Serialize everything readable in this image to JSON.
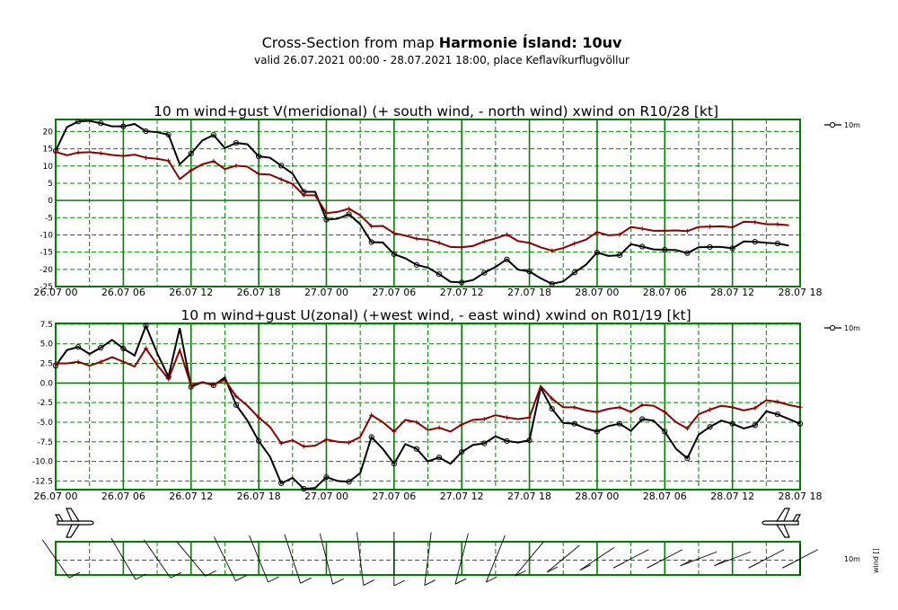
{
  "title": {
    "prefix": "Cross-Section from map ",
    "map_name": "Harmonie Ísland: 10uv",
    "subtitle": "valid 26.07.2021 00:00 - 28.07.2021 18:00, place Keflavíkurflugvöllur"
  },
  "colors": {
    "wind": "#000000",
    "gust": "#8b0000",
    "grid": "#008000"
  },
  "chart_data": [
    {
      "type": "line",
      "title": "10 m wind+gust V(meridional) (+ south wind, - north wind) xwind on R10/28 [kt]",
      "x_tick_labels": [
        "26.07 00",
        "26.07 06",
        "26.07 12",
        "26.07 18",
        "27.07 00",
        "27.07 06",
        "27.07 12",
        "27.07 18",
        "28.07 00",
        "28.07 06",
        "28.07 12",
        "28.07 18"
      ],
      "y_ticks": [
        20,
        15,
        10,
        5,
        0,
        -5,
        -10,
        -15,
        -20,
        -25
      ],
      "ylim": [
        -25,
        23.5
      ],
      "xlim": [
        0,
        66
      ],
      "legend": "10m",
      "series": [
        {
          "name": "wind",
          "marker": "circle",
          "values": [
            14.4,
            21.3,
            22.9,
            23.1,
            22.4,
            21.5,
            21.5,
            22.2,
            20.1,
            19.8,
            19.1,
            10.5,
            13.6,
            17.4,
            19.0,
            15.2,
            16.7,
            16.3,
            12.8,
            12.4,
            10.1,
            7.8,
            2.5,
            2.5,
            -5.6,
            -5.3,
            -4.0,
            -6.9,
            -12.1,
            -12.2,
            -15.6,
            -16.8,
            -18.7,
            -19.5,
            -21.4,
            -23.6,
            -23.8,
            -23.1,
            -21.0,
            -19.3,
            -17.1,
            -20.1,
            -20.6,
            -22.6,
            -24.2,
            -23.5,
            -20.9,
            -18.7,
            -15.1,
            -16.1,
            -15.9,
            -12.7,
            -13.4,
            -14.2,
            -14.3,
            -14.4,
            -15.3,
            -13.6,
            -13.5,
            -13.5,
            -13.9,
            -11.9,
            -12.0,
            -12.3,
            -12.5,
            -13.1
          ]
        },
        {
          "name": "gust",
          "marker": "plus",
          "values": [
            14.1,
            13.1,
            13.9,
            14.0,
            13.7,
            13.2,
            12.9,
            13.3,
            12.4,
            12.1,
            11.5,
            6.2,
            8.7,
            10.5,
            11.4,
            9.1,
            10.1,
            9.8,
            7.7,
            7.5,
            6.1,
            4.8,
            1.5,
            1.5,
            -3.7,
            -3.3,
            -2.4,
            -4.3,
            -7.5,
            -7.4,
            -9.5,
            -10.2,
            -11.1,
            -11.4,
            -12.3,
            -13.5,
            -13.6,
            -13.2,
            -11.9,
            -11.0,
            -9.9,
            -11.8,
            -12.3,
            -13.6,
            -14.6,
            -13.8,
            -12.5,
            -11.4,
            -9.2,
            -10.1,
            -9.9,
            -7.7,
            -8.2,
            -8.8,
            -8.8,
            -8.7,
            -8.9,
            -7.7,
            -7.6,
            -7.5,
            -7.8,
            -6.2,
            -6.3,
            -6.9,
            -6.9,
            -7.2
          ]
        }
      ]
    },
    {
      "type": "line",
      "title": "10 m wind+gust U(zonal) (+west wind, - east wind) xwind on R01/19 [kt]",
      "x_tick_labels": [
        "26.07 00",
        "26.07 06",
        "26.07 12",
        "26.07 18",
        "27.07 00",
        "27.07 06",
        "27.07 12",
        "27.07 18",
        "28.07 00",
        "28.07 06",
        "28.07 12",
        "28.07 18"
      ],
      "y_ticks": [
        7.5,
        5.0,
        2.5,
        0.0,
        -2.5,
        -5.0,
        -7.5,
        -10.0,
        -12.5
      ],
      "ylim": [
        -13.6,
        7.6
      ],
      "xlim": [
        0,
        66
      ],
      "legend": "10m",
      "series": [
        {
          "name": "wind",
          "marker": "circle",
          "values": [
            2.2,
            4.2,
            4.6,
            3.7,
            4.5,
            5.5,
            4.4,
            3.5,
            7.3,
            3.8,
            0.8,
            7.0,
            -0.5,
            0.1,
            -0.3,
            0.7,
            -2.8,
            -4.8,
            -7.4,
            -9.4,
            -12.8,
            -12.1,
            -13.5,
            -13.4,
            -12.0,
            -12.5,
            -12.6,
            -11.5,
            -6.9,
            -8.4,
            -10.3,
            -7.8,
            -8.4,
            -10.0,
            -9.5,
            -10.3,
            -8.8,
            -7.9,
            -7.7,
            -6.8,
            -7.4,
            -7.6,
            -7.3,
            -0.6,
            -3.3,
            -5.1,
            -5.2,
            -5.8,
            -6.2,
            -5.5,
            -5.2,
            -6.1,
            -4.6,
            -4.8,
            -6.2,
            -8.4,
            -9.6,
            -6.6,
            -5.6,
            -4.8,
            -5.2,
            -5.8,
            -5.4,
            -3.6,
            -4.0,
            -4.6,
            -5.2
          ]
        },
        {
          "name": "gust",
          "marker": "plus",
          "values": [
            2.5,
            2.5,
            2.7,
            2.2,
            2.7,
            3.3,
            2.7,
            2.1,
            4.4,
            2.3,
            0.5,
            4.2,
            -0.3,
            0.1,
            -0.2,
            0.4,
            -1.7,
            -2.9,
            -4.4,
            -5.6,
            -7.7,
            -7.3,
            -8.1,
            -8.0,
            -7.2,
            -7.5,
            -7.6,
            -6.9,
            -4.1,
            -5.0,
            -6.2,
            -4.7,
            -5.0,
            -6.0,
            -5.7,
            -6.2,
            -5.3,
            -4.7,
            -4.6,
            -4.1,
            -4.4,
            -4.6,
            -4.4,
            -0.4,
            -2.0,
            -3.1,
            -3.1,
            -3.5,
            -3.7,
            -3.3,
            -3.1,
            -3.7,
            -2.8,
            -2.9,
            -3.7,
            -5.0,
            -5.8,
            -4.0,
            -3.4,
            -2.9,
            -3.1,
            -3.5,
            -3.2,
            -2.2,
            -2.4,
            -2.8,
            -3.1
          ]
        }
      ]
    }
  ],
  "wind_panel": {
    "legend_value": "10m",
    "legend_label": "wind []",
    "barb_times": [
      0,
      6,
      9,
      12,
      15,
      18,
      21,
      24,
      27,
      30,
      33,
      36,
      39,
      42,
      45,
      48,
      51,
      54,
      57,
      60,
      63,
      66
    ],
    "wind_dirs_deg": [
      135,
      140,
      135,
      130,
      145,
      150,
      155,
      160,
      170,
      180,
      190,
      200,
      210,
      230,
      240,
      245,
      250,
      250,
      255,
      255,
      250,
      250
    ]
  }
}
